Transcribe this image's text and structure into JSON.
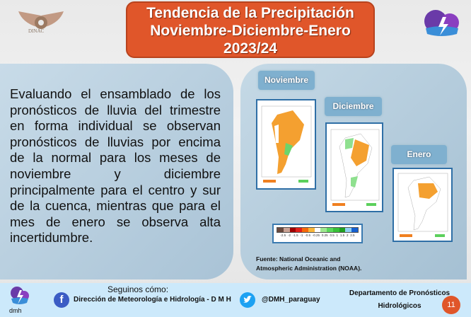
{
  "header": {
    "title_lines": [
      "Tendencia de la Precipitación",
      "Noviembre-Diciembre-Enero",
      "2023/24"
    ],
    "left_logo": "DINAC",
    "accent": "#e0562a"
  },
  "body_text": "Evaluando el ensamblado de los pronósticos de lluvia del trimestre en forma individual se observan pronósticos de lluvias por encima de la normal para los meses de noviembre y diciembre principalmente para el centro y sur de la cuenca, mientras que para el mes de enero se observa alta incertidumbre.",
  "maps": [
    {
      "label": "Noviembre"
    },
    {
      "label": "Diciembre"
    },
    {
      "label": "Enero"
    }
  ],
  "legend": {
    "colors": [
      "#6b4a3e",
      "#c9a294",
      "#a00000",
      "#e0201a",
      "#f56a0a",
      "#f9b63a",
      "#ffffff",
      "#9fe890",
      "#5ad85a",
      "#38c038",
      "#20a020",
      "#90cff0",
      "#1560d0"
    ],
    "labels": [
      "-2.5",
      "-2",
      "-1.5",
      "-1",
      "-0.5",
      "-0.25",
      "0.25",
      "0.5",
      "1",
      "1.5",
      "2",
      "2.5"
    ]
  },
  "source": [
    "Fuente: National Oceanic and",
    "Atmospheric Administration (NOAA)."
  ],
  "footer": {
    "logo_text": "dmh",
    "follow": "Seguinos  cómo:",
    "facebook": "Dirección de Meteorología e Hidrología - D M H",
    "twitter": "@DMH_paraguay",
    "dept": [
      "Departamento de Pronósticos",
      "Hidrológicos"
    ],
    "page": "11"
  }
}
